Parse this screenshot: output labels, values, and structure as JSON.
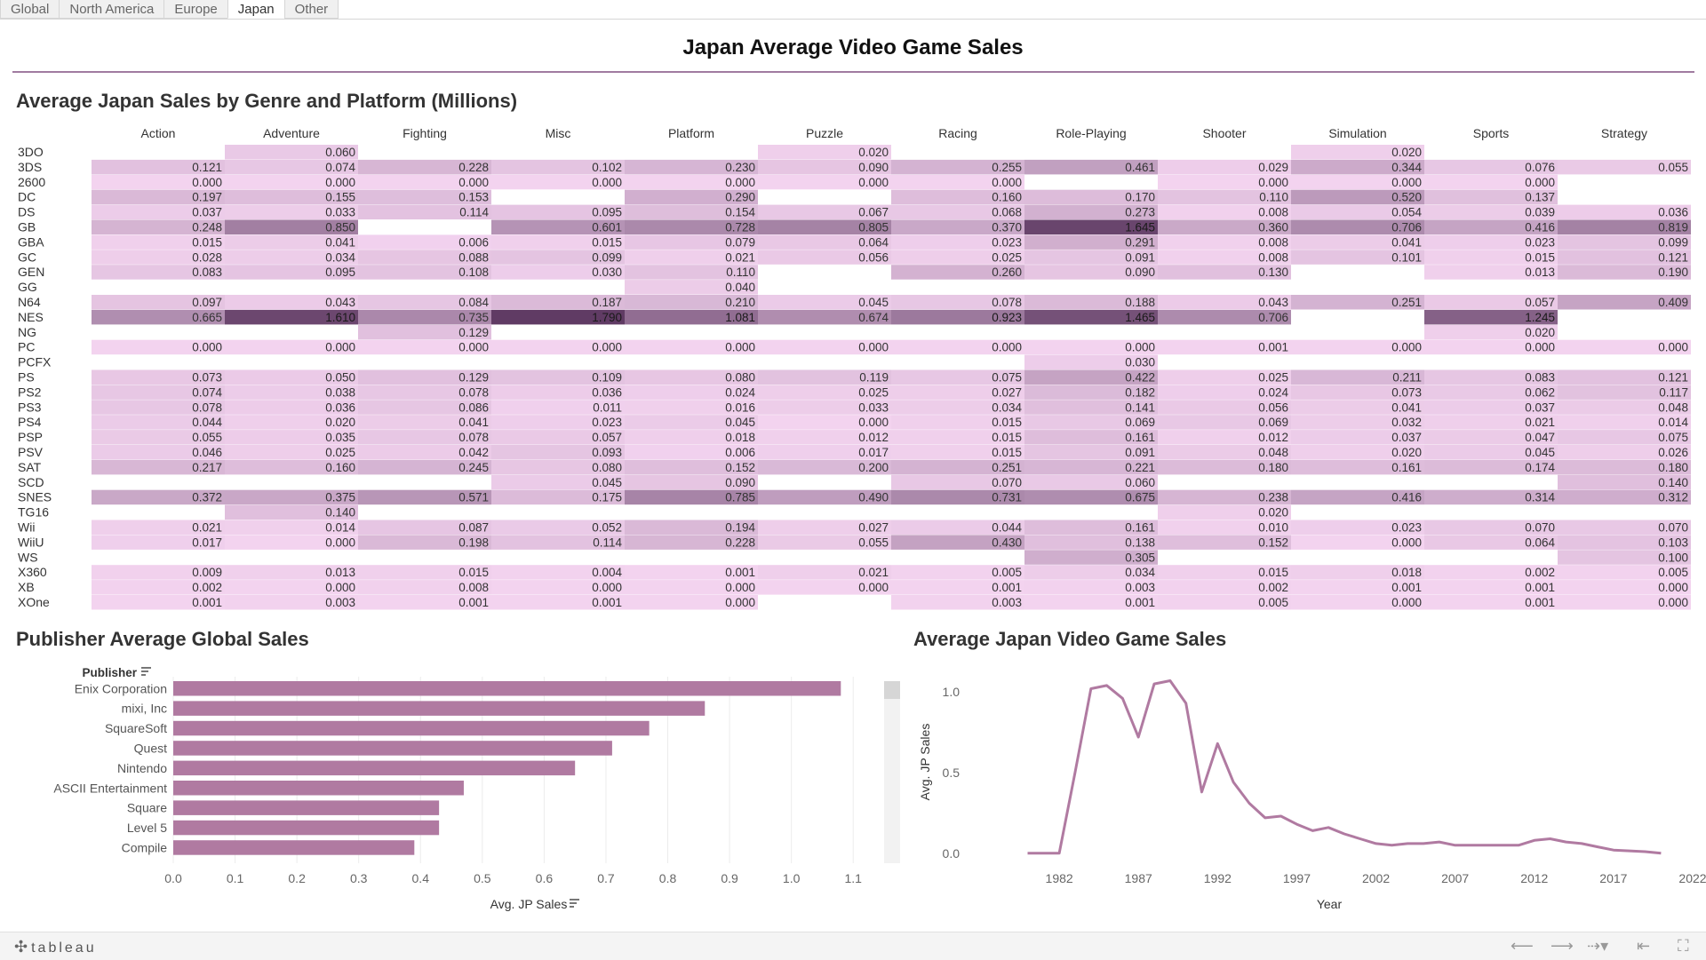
{
  "tabs": [
    "Global",
    "North America",
    "Europe",
    "Japan",
    "Other"
  ],
  "active_tab": 3,
  "dashboard_title": "Japan Average Video Game Sales",
  "heatmap": {
    "title": "Average Japan Sales by Genre and Platform (Millions)",
    "genres": [
      "Action",
      "Adventure",
      "Fighting",
      "Misc",
      "Platform",
      "Puzzle",
      "Racing",
      "Role-Playing",
      "Shooter",
      "Simulation",
      "Sports",
      "Strategy"
    ],
    "platforms": [
      "3DO",
      "3DS",
      "2600",
      "DC",
      "DS",
      "GB",
      "GBA",
      "GC",
      "GEN",
      "GG",
      "N64",
      "NES",
      "NG",
      "PC",
      "PCFX",
      "PS",
      "PS2",
      "PS3",
      "PS4",
      "PSP",
      "PSV",
      "SAT",
      "SCD",
      "SNES",
      "TG16",
      "Wii",
      "WiiU",
      "WS",
      "X360",
      "XB",
      "XOne"
    ],
    "values": [
      [
        null,
        "0.060",
        null,
        null,
        null,
        "0.020",
        null,
        null,
        null,
        "0.020",
        null,
        null
      ],
      [
        "0.121",
        "0.074",
        "0.228",
        "0.102",
        "0.230",
        "0.090",
        "0.255",
        "0.461",
        "0.029",
        "0.344",
        "0.076",
        "0.055"
      ],
      [
        "0.000",
        "0.000",
        "0.000",
        "0.000",
        "0.000",
        "0.000",
        "0.000",
        null,
        "0.000",
        "0.000",
        "0.000",
        null
      ],
      [
        "0.197",
        "0.155",
        "0.153",
        null,
        "0.290",
        null,
        "0.160",
        "0.170",
        "0.110",
        "0.520",
        "0.137",
        null
      ],
      [
        "0.037",
        "0.033",
        "0.114",
        "0.095",
        "0.154",
        "0.067",
        "0.068",
        "0.273",
        "0.008",
        "0.054",
        "0.039",
        "0.036"
      ],
      [
        "0.248",
        "0.850",
        null,
        "0.601",
        "0.728",
        "0.805",
        "0.370",
        "1.645",
        "0.360",
        "0.706",
        "0.416",
        "0.819"
      ],
      [
        "0.015",
        "0.041",
        "0.006",
        "0.015",
        "0.079",
        "0.064",
        "0.023",
        "0.291",
        "0.008",
        "0.041",
        "0.023",
        "0.099"
      ],
      [
        "0.028",
        "0.034",
        "0.088",
        "0.099",
        "0.021",
        "0.056",
        "0.025",
        "0.091",
        "0.008",
        "0.101",
        "0.015",
        "0.121"
      ],
      [
        "0.083",
        "0.095",
        "0.108",
        "0.030",
        "0.110",
        null,
        "0.260",
        "0.090",
        "0.130",
        null,
        "0.013",
        "0.190"
      ],
      [
        null,
        null,
        null,
        null,
        "0.040",
        null,
        null,
        null,
        null,
        null,
        null,
        null
      ],
      [
        "0.097",
        "0.043",
        "0.084",
        "0.187",
        "0.210",
        "0.045",
        "0.078",
        "0.188",
        "0.043",
        "0.251",
        "0.057",
        "0.409"
      ],
      [
        "0.665",
        "1.610",
        "0.735",
        "1.790",
        "1.081",
        "0.674",
        "0.923",
        "1.465",
        "0.706",
        null,
        "1.245",
        null
      ],
      [
        null,
        null,
        "0.129",
        null,
        null,
        null,
        null,
        null,
        null,
        null,
        "0.020",
        null
      ],
      [
        "0.000",
        "0.000",
        "0.000",
        "0.000",
        "0.000",
        "0.000",
        "0.000",
        "0.000",
        "0.001",
        "0.000",
        "0.000",
        "0.000"
      ],
      [
        null,
        null,
        null,
        null,
        null,
        null,
        null,
        "0.030",
        null,
        null,
        null,
        null
      ],
      [
        "0.073",
        "0.050",
        "0.129",
        "0.109",
        "0.080",
        "0.119",
        "0.075",
        "0.422",
        "0.025",
        "0.211",
        "0.083",
        "0.121"
      ],
      [
        "0.074",
        "0.038",
        "0.078",
        "0.036",
        "0.024",
        "0.025",
        "0.027",
        "0.182",
        "0.024",
        "0.073",
        "0.062",
        "0.117"
      ],
      [
        "0.078",
        "0.036",
        "0.086",
        "0.011",
        "0.016",
        "0.033",
        "0.034",
        "0.141",
        "0.056",
        "0.041",
        "0.037",
        "0.048"
      ],
      [
        "0.044",
        "0.020",
        "0.041",
        "0.023",
        "0.045",
        "0.000",
        "0.015",
        "0.069",
        "0.069",
        "0.032",
        "0.021",
        "0.014"
      ],
      [
        "0.055",
        "0.035",
        "0.078",
        "0.057",
        "0.018",
        "0.012",
        "0.015",
        "0.161",
        "0.012",
        "0.037",
        "0.047",
        "0.075"
      ],
      [
        "0.046",
        "0.025",
        "0.042",
        "0.093",
        "0.006",
        "0.017",
        "0.015",
        "0.091",
        "0.048",
        "0.020",
        "0.045",
        "0.026"
      ],
      [
        "0.217",
        "0.160",
        "0.245",
        "0.080",
        "0.152",
        "0.200",
        "0.251",
        "0.221",
        "0.180",
        "0.161",
        "0.174",
        "0.180"
      ],
      [
        null,
        null,
        null,
        "0.045",
        "0.090",
        null,
        "0.070",
        "0.060",
        null,
        null,
        null,
        "0.140"
      ],
      [
        "0.372",
        "0.375",
        "0.571",
        "0.175",
        "0.785",
        "0.490",
        "0.731",
        "0.675",
        "0.238",
        "0.416",
        "0.314",
        "0.312"
      ],
      [
        null,
        "0.140",
        null,
        null,
        null,
        null,
        null,
        null,
        "0.020",
        null,
        null,
        null
      ],
      [
        "0.021",
        "0.014",
        "0.087",
        "0.052",
        "0.194",
        "0.027",
        "0.044",
        "0.161",
        "0.010",
        "0.023",
        "0.070",
        "0.070"
      ],
      [
        "0.017",
        "0.000",
        "0.198",
        "0.114",
        "0.228",
        "0.055",
        "0.430",
        "0.138",
        "0.152",
        "0.000",
        "0.064",
        "0.103"
      ],
      [
        null,
        null,
        null,
        null,
        null,
        null,
        null,
        "0.305",
        null,
        null,
        null,
        "0.100"
      ],
      [
        "0.009",
        "0.013",
        "0.015",
        "0.004",
        "0.001",
        "0.021",
        "0.005",
        "0.034",
        "0.015",
        "0.018",
        "0.002",
        "0.005"
      ],
      [
        "0.002",
        "0.000",
        "0.008",
        "0.000",
        "0.000",
        "0.000",
        "0.001",
        "0.003",
        "0.002",
        "0.001",
        "0.001",
        "0.000"
      ],
      [
        "0.001",
        "0.003",
        "0.001",
        "0.001",
        "0.000",
        null,
        "0.003",
        "0.001",
        "0.005",
        "0.000",
        "0.001",
        "0.000"
      ]
    ],
    "color_low": "#f3d3ef",
    "color_high": "#5f3a63"
  },
  "bar_chart": {
    "title": "Publisher Average Global Sales",
    "field_label": "Publisher",
    "sort_icon": "sort-icon",
    "xlabel": "Avg. JP Sales",
    "bar_color": "#b07aa1",
    "chart_data": {
      "type": "bar",
      "orientation": "horizontal",
      "categories": [
        "Enix Corporation",
        "mixi, Inc",
        "SquareSoft",
        "Quest",
        "Nintendo",
        "ASCII Entertainment",
        "Square",
        "Level 5",
        "Compile"
      ],
      "values": [
        1.08,
        0.86,
        0.77,
        0.71,
        0.65,
        0.47,
        0.43,
        0.43,
        0.39
      ],
      "xlabel": "Avg. JP Sales",
      "ylabel": "Publisher",
      "xlim": [
        0,
        1.15
      ],
      "x_ticks": [
        "0.0",
        "0.1",
        "0.2",
        "0.3",
        "0.4",
        "0.5",
        "0.6",
        "0.7",
        "0.8",
        "0.9",
        "1.0",
        "1.1"
      ],
      "grid": true
    }
  },
  "line_chart": {
    "title": "Average Japan Video Game Sales",
    "line_color": "#b07aa1",
    "chart_data": {
      "type": "line",
      "x": [
        1980,
        1981,
        1982,
        1983,
        1984,
        1985,
        1986,
        1987,
        1988,
        1989,
        1990,
        1991,
        1992,
        1993,
        1994,
        1995,
        1996,
        1997,
        1998,
        1999,
        2000,
        2001,
        2002,
        2003,
        2004,
        2005,
        2006,
        2007,
        2008,
        2009,
        2010,
        2011,
        2012,
        2013,
        2014,
        2015,
        2016,
        2017,
        2018,
        2019,
        2020
      ],
      "y": [
        0.0,
        0.0,
        0.0,
        0.5,
        1.02,
        1.04,
        0.96,
        0.72,
        1.05,
        1.07,
        0.93,
        0.38,
        0.68,
        0.44,
        0.31,
        0.22,
        0.23,
        0.18,
        0.14,
        0.16,
        0.12,
        0.09,
        0.06,
        0.05,
        0.06,
        0.06,
        0.07,
        0.05,
        0.05,
        0.05,
        0.05,
        0.05,
        0.08,
        0.09,
        0.07,
        0.06,
        0.04,
        0.02,
        0.015,
        0.01,
        0.0
      ],
      "xlabel": "Year",
      "ylabel": "Avg. JP Sales",
      "xlim": [
        1977,
        2022
      ],
      "ylim": [
        -0.1,
        1.1
      ],
      "x_ticks": [
        "1982",
        "1987",
        "1992",
        "1997",
        "2002",
        "2007",
        "2012",
        "2017",
        "2022"
      ],
      "y_ticks": [
        "0.0",
        "0.5",
        "1.0"
      ]
    }
  },
  "footer": {
    "logo_text": "tableau",
    "logo_icon": "tableau-plus-icon",
    "icons": [
      "undo-icon",
      "redo-icon",
      "revert-icon",
      "pause-icon",
      "fullscreen-icon"
    ]
  }
}
